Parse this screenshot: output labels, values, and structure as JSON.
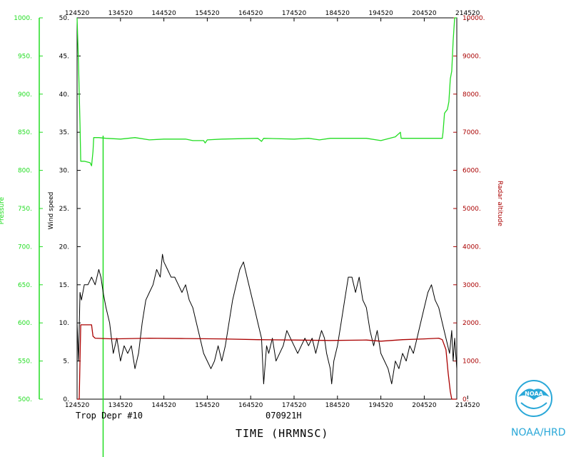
{
  "chart_data": {
    "type": "line",
    "title": "",
    "storm_name": "Trop Depr #10",
    "date_label": "070921H",
    "xlabel": "TIME (HRMNSC)",
    "x_ticks": [
      "124520",
      "134520",
      "144520",
      "154520",
      "164520",
      "174520",
      "184520",
      "194520",
      "204520",
      "214520"
    ],
    "xlim_minutes": [
      0,
      525
    ],
    "axes": {
      "pressure": {
        "label": "Pressure",
        "min": 500,
        "max": 1000,
        "ticks": [
          "500.",
          "550.",
          "600.",
          "650.",
          "700.",
          "750.",
          "800.",
          "850.",
          "900.",
          "950.",
          "1000."
        ],
        "color": "#22dd22"
      },
      "wind": {
        "label": "Wind speed",
        "min": 0,
        "max": 50,
        "ticks": [
          "0.",
          "5.",
          "10.",
          "15.",
          "20.",
          "25.",
          "30.",
          "35.",
          "40.",
          "45.",
          "50."
        ],
        "color": "#000000"
      },
      "altitude": {
        "label": "Radar altitude",
        "min": 0,
        "max": 10000,
        "ticks": [
          "0.",
          "1000.",
          "2000.",
          "3000.",
          "4000.",
          "5000.",
          "6000.",
          "7000.",
          "8000.",
          "9000.",
          "10000."
        ],
        "color": "#aa0000"
      }
    },
    "series": [
      {
        "name": "Pressure",
        "color": "#22dd22",
        "axis": "pressure",
        "points": [
          [
            0,
            1000
          ],
          [
            2,
            940
          ],
          [
            4,
            860
          ],
          [
            5,
            812
          ],
          [
            10,
            812
          ],
          [
            18,
            810
          ],
          [
            20,
            806
          ],
          [
            22,
            825
          ],
          [
            23,
            843
          ],
          [
            30,
            843
          ],
          [
            40,
            842
          ],
          [
            60,
            841
          ],
          [
            80,
            843
          ],
          [
            100,
            840
          ],
          [
            120,
            841
          ],
          [
            150,
            841
          ],
          [
            160,
            839
          ],
          [
            175,
            839
          ],
          [
            177,
            836
          ],
          [
            180,
            840
          ],
          [
            200,
            841
          ],
          [
            250,
            842
          ],
          [
            255,
            838
          ],
          [
            258,
            842
          ],
          [
            300,
            841
          ],
          [
            320,
            842
          ],
          [
            335,
            840
          ],
          [
            350,
            842
          ],
          [
            400,
            842
          ],
          [
            420,
            839
          ],
          [
            440,
            844
          ],
          [
            447,
            850
          ],
          [
            448,
            842
          ],
          [
            470,
            842
          ],
          [
            496,
            842
          ],
          [
            505,
            842
          ],
          [
            506,
            850
          ],
          [
            508,
            875
          ],
          [
            512,
            880
          ],
          [
            514,
            890
          ],
          [
            516,
            920
          ],
          [
            518,
            930
          ],
          [
            520,
            970
          ],
          [
            522,
            1000
          ],
          [
            525,
            1000
          ]
        ]
      },
      {
        "name": "Wind speed",
        "color": "#000000",
        "axis": "wind",
        "points": [
          [
            0,
            10
          ],
          [
            2,
            5
          ],
          [
            4,
            14
          ],
          [
            6,
            13
          ],
          [
            10,
            15
          ],
          [
            15,
            15
          ],
          [
            20,
            16
          ],
          [
            25,
            15
          ],
          [
            30,
            17
          ],
          [
            33,
            16
          ],
          [
            36,
            14
          ],
          [
            40,
            12
          ],
          [
            45,
            10
          ],
          [
            50,
            6
          ],
          [
            55,
            8
          ],
          [
            60,
            5
          ],
          [
            65,
            7
          ],
          [
            70,
            6
          ],
          [
            75,
            7
          ],
          [
            80,
            4
          ],
          [
            85,
            6
          ],
          [
            90,
            10
          ],
          [
            95,
            13
          ],
          [
            100,
            14
          ],
          [
            105,
            15
          ],
          [
            110,
            17
          ],
          [
            115,
            16
          ],
          [
            118,
            19
          ],
          [
            120,
            18
          ],
          [
            125,
            17
          ],
          [
            130,
            16
          ],
          [
            135,
            16
          ],
          [
            140,
            15
          ],
          [
            145,
            14
          ],
          [
            150,
            15
          ],
          [
            155,
            13
          ],
          [
            160,
            12
          ],
          [
            165,
            10
          ],
          [
            170,
            8
          ],
          [
            175,
            6
          ],
          [
            180,
            5
          ],
          [
            185,
            4
          ],
          [
            190,
            5
          ],
          [
            195,
            7
          ],
          [
            200,
            5
          ],
          [
            205,
            7
          ],
          [
            210,
            10
          ],
          [
            215,
            13
          ],
          [
            220,
            15
          ],
          [
            225,
            17
          ],
          [
            230,
            18
          ],
          [
            235,
            16
          ],
          [
            240,
            14
          ],
          [
            245,
            12
          ],
          [
            250,
            10
          ],
          [
            255,
            8
          ],
          [
            258,
            2
          ],
          [
            262,
            7
          ],
          [
            265,
            6
          ],
          [
            270,
            8
          ],
          [
            275,
            5
          ],
          [
            280,
            6
          ],
          [
            285,
            7
          ],
          [
            290,
            9
          ],
          [
            295,
            8
          ],
          [
            300,
            7
          ],
          [
            305,
            6
          ],
          [
            310,
            7
          ],
          [
            315,
            8
          ],
          [
            320,
            7
          ],
          [
            325,
            8
          ],
          [
            330,
            6
          ],
          [
            335,
            8
          ],
          [
            338,
            9
          ],
          [
            342,
            8
          ],
          [
            345,
            6
          ],
          [
            350,
            4
          ],
          [
            352,
            2
          ],
          [
            355,
            5
          ],
          [
            360,
            7
          ],
          [
            365,
            10
          ],
          [
            370,
            13
          ],
          [
            375,
            16
          ],
          [
            380,
            16
          ],
          [
            385,
            14
          ],
          [
            390,
            16
          ],
          [
            395,
            13
          ],
          [
            400,
            12
          ],
          [
            405,
            9
          ],
          [
            410,
            7
          ],
          [
            415,
            9
          ],
          [
            420,
            6
          ],
          [
            425,
            5
          ],
          [
            430,
            4
          ],
          [
            435,
            2
          ],
          [
            440,
            5
          ],
          [
            445,
            4
          ],
          [
            450,
            6
          ],
          [
            455,
            5
          ],
          [
            460,
            7
          ],
          [
            465,
            6
          ],
          [
            470,
            8
          ],
          [
            475,
            10
          ],
          [
            480,
            12
          ],
          [
            485,
            14
          ],
          [
            490,
            15
          ],
          [
            495,
            13
          ],
          [
            500,
            12
          ],
          [
            505,
            10
          ],
          [
            510,
            8
          ],
          [
            515,
            6
          ],
          [
            518,
            9
          ],
          [
            520,
            5
          ],
          [
            522,
            8
          ],
          [
            525,
            4
          ]
        ]
      },
      {
        "name": "Radar altitude",
        "color": "#aa0000",
        "axis": "altitude",
        "points": [
          [
            0,
            0
          ],
          [
            3,
            0
          ],
          [
            5,
            1950
          ],
          [
            10,
            1950
          ],
          [
            15,
            1950
          ],
          [
            20,
            1950
          ],
          [
            22,
            1650
          ],
          [
            25,
            1600
          ],
          [
            50,
            1580
          ],
          [
            100,
            1600
          ],
          [
            150,
            1590
          ],
          [
            200,
            1580
          ],
          [
            250,
            1560
          ],
          [
            300,
            1550
          ],
          [
            350,
            1540
          ],
          [
            400,
            1550
          ],
          [
            420,
            1520
          ],
          [
            450,
            1560
          ],
          [
            480,
            1580
          ],
          [
            500,
            1600
          ],
          [
            505,
            1560
          ],
          [
            510,
            1300
          ],
          [
            513,
            700
          ],
          [
            516,
            200
          ],
          [
            518,
            0
          ],
          [
            525,
            0
          ]
        ]
      }
    ],
    "vertical_marker": {
      "color": "#22dd22",
      "x_minutes": 36
    }
  },
  "info": {
    "storm": "Trop Depr #10",
    "date": "070921H",
    "time_label": "TIME (HRMNSC)",
    "org": "NOAA/HRD",
    "logo_text": "NOAA"
  }
}
